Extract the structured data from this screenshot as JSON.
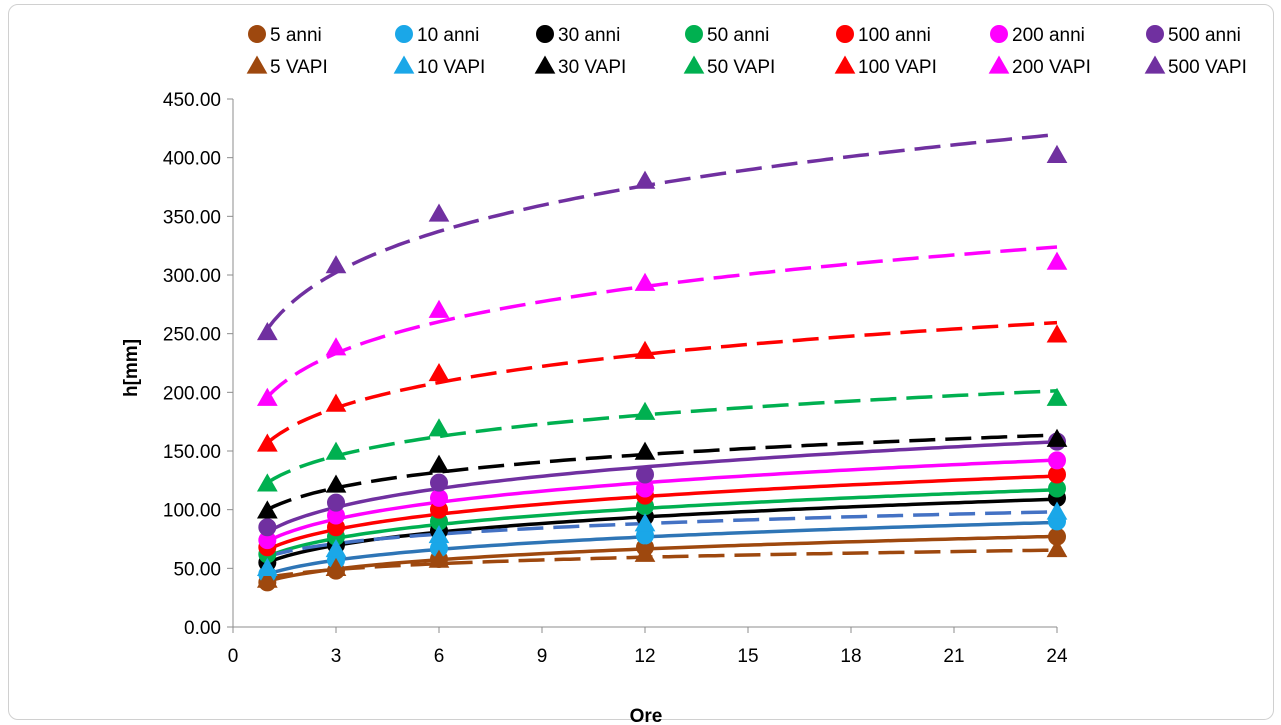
{
  "chart_data": {
    "type": "scatter",
    "title": "",
    "xlabel": "Ore",
    "ylabel": "h[mm]",
    "xlim": [
      0,
      24
    ],
    "ylim": [
      0,
      450
    ],
    "x_ticks": [
      "0",
      "3",
      "6",
      "9",
      "12",
      "15",
      "18",
      "21",
      "24"
    ],
    "y_ticks": [
      "0.00",
      "50.00",
      "100.00",
      "150.00",
      "200.00",
      "250.00",
      "300.00",
      "350.00",
      "400.00",
      "450.00"
    ],
    "grid": false,
    "legend_position": "top",
    "x": [
      1,
      3,
      6,
      12,
      24
    ],
    "series": [
      {
        "name": "5 anni",
        "marker": "circle",
        "color": "#9e480e",
        "values": [
          38,
          48,
          58,
          68,
          77
        ],
        "trend": {
          "style": "solid",
          "color": "#9e480e",
          "a": 39,
          "n": 0.215
        }
      },
      {
        "name": "10 anni",
        "marker": "circle",
        "color": "#1aa7e8",
        "values": [
          45,
          57,
          67,
          78,
          90
        ],
        "trend": {
          "style": "solid",
          "color": "#2e75b6",
          "a": 45,
          "n": 0.215
        }
      },
      {
        "name": "30 anni",
        "marker": "circle",
        "color": "#000000",
        "values": [
          55,
          70,
          82,
          94,
          110
        ],
        "trend": {
          "style": "solid",
          "color": "#000000",
          "a": 55,
          "n": 0.215
        }
      },
      {
        "name": "50 anni",
        "marker": "circle",
        "color": "#00b050",
        "values": [
          62,
          77,
          90,
          103,
          118
        ],
        "trend": {
          "style": "solid",
          "color": "#00b050",
          "a": 60,
          "n": 0.21
        }
      },
      {
        "name": "100 anni",
        "marker": "circle",
        "color": "#ff0000",
        "values": [
          68,
          85,
          100,
          112,
          130
        ],
        "trend": {
          "style": "solid",
          "color": "#ff0000",
          "a": 66,
          "n": 0.21
        }
      },
      {
        "name": "200 anni",
        "marker": "circle",
        "color": "#ff00ff",
        "values": [
          74,
          95,
          110,
          118,
          142
        ],
        "trend": {
          "style": "solid",
          "color": "#ff00ff",
          "a": 73,
          "n": 0.21
        }
      },
      {
        "name": "500 anni",
        "marker": "circle",
        "color": "#7030a0",
        "values": [
          85,
          106,
          123,
          130,
          158
        ],
        "trend": {
          "style": "solid",
          "color": "#7030a0",
          "a": 81,
          "n": 0.21
        }
      },
      {
        "name": "5 VAPI",
        "marker": "triangle",
        "color": "#9e480e",
        "values": [
          40,
          50,
          57,
          62,
          66
        ],
        "trend": {
          "style": "dashed",
          "color": "#9e480e",
          "a": 42,
          "n": 0.14
        }
      },
      {
        "name": "10 VAPI",
        "marker": "triangle",
        "color": "#1aa7e8",
        "values": [
          50,
          66,
          78,
          88,
          98
        ],
        "trend": {
          "style": "dashed",
          "color": "#4472c4",
          "a": 60,
          "n": 0.155
        }
      },
      {
        "name": "30 VAPI",
        "marker": "triangle",
        "color": "#000000",
        "values": [
          99,
          121,
          138,
          149,
          160
        ],
        "trend": {
          "style": "dashed",
          "color": "#000000",
          "a": 100,
          "n": 0.155
        }
      },
      {
        "name": "50 VAPI",
        "marker": "triangle",
        "color": "#00b050",
        "values": [
          122,
          149,
          169,
          183,
          195
        ],
        "trend": {
          "style": "dashed",
          "color": "#00b050",
          "a": 123,
          "n": 0.155
        }
      },
      {
        "name": "100 VAPI",
        "marker": "triangle",
        "color": "#ff0000",
        "values": [
          156,
          190,
          216,
          235,
          249
        ],
        "trend": {
          "style": "dashed",
          "color": "#ff0000",
          "a": 157,
          "n": 0.158
        }
      },
      {
        "name": "200 VAPI",
        "marker": "triangle",
        "color": "#ff00ff",
        "values": [
          195,
          238,
          270,
          293,
          311
        ],
        "trend": {
          "style": "dashed",
          "color": "#ff00ff",
          "a": 196,
          "n": 0.158
        }
      },
      {
        "name": "500 VAPI",
        "marker": "triangle",
        "color": "#7030a0",
        "values": [
          251,
          308,
          352,
          380,
          402
        ],
        "trend": {
          "style": "dashed",
          "color": "#7030a0",
          "a": 254,
          "n": 0.158
        }
      }
    ]
  }
}
